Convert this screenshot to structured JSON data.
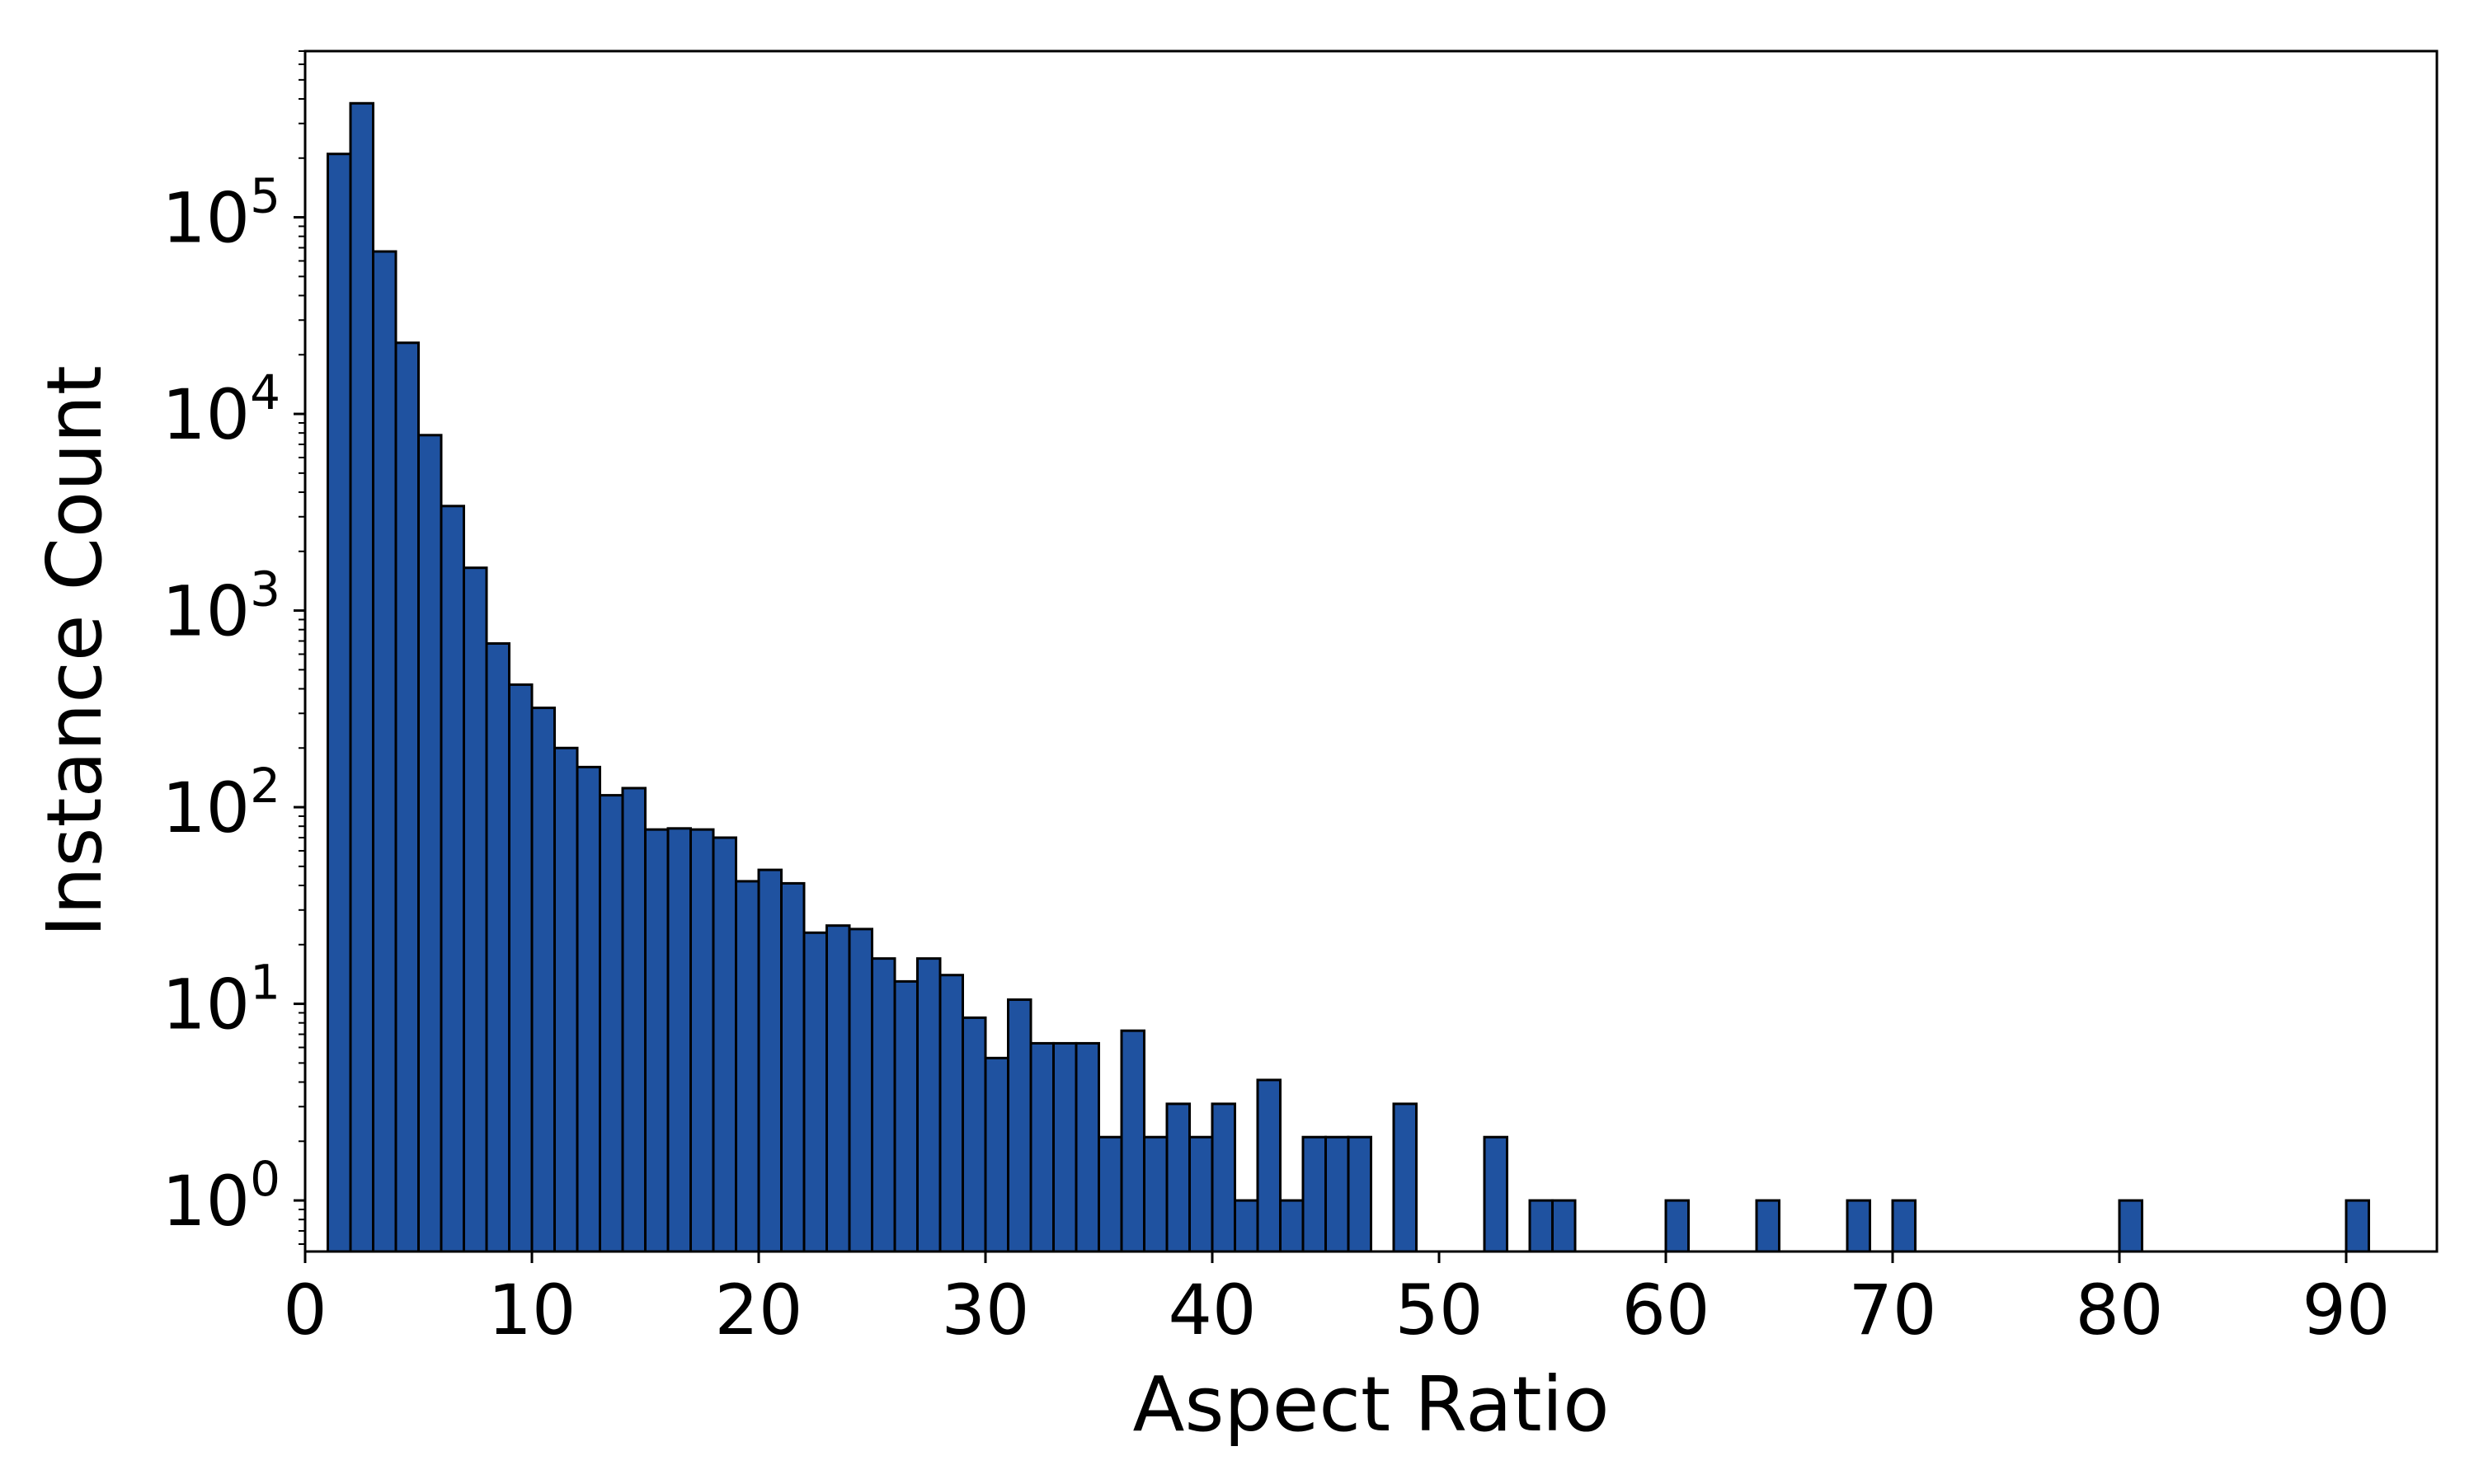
{
  "chart_data": {
    "type": "bar",
    "title": "",
    "xlabel": "Aspect Ratio",
    "ylabel": "Instance Count",
    "xlim": [
      0,
      94
    ],
    "ylim": [
      0.55,
      700000
    ],
    "yscale": "log",
    "grid": false,
    "legend": "none",
    "bar_color": "#1f52a0",
    "edge_color": "#000000",
    "bin_width": 1.0,
    "bins_start": [
      1,
      2,
      3,
      4,
      5,
      6,
      7,
      8,
      9,
      10,
      11,
      12,
      13,
      14,
      15,
      16,
      17,
      18,
      19,
      20,
      21,
      22,
      23,
      24,
      25,
      26,
      27,
      28,
      29,
      30,
      31,
      32,
      33,
      34,
      35,
      36,
      37,
      38,
      39,
      40,
      41,
      42,
      43,
      44,
      45,
      46,
      48,
      52,
      54,
      55,
      60,
      64,
      68,
      70,
      80,
      90
    ],
    "values": [
      210000,
      380000,
      67000,
      23000,
      7800,
      3400,
      1650,
      680,
      420,
      320,
      200,
      160,
      115,
      125,
      77,
      78,
      77,
      70,
      42,
      48,
      41,
      23,
      25,
      24,
      17,
      13,
      17,
      14,
      8.5,
      5.3,
      10.5,
      6.3,
      6.3,
      6.3,
      2.1,
      7.3,
      2.1,
      3.1,
      2.1,
      3.1,
      1,
      4.1,
      1,
      2.1,
      2.1,
      2.1,
      3.1,
      2.1,
      1,
      1,
      1,
      1,
      1,
      1,
      1,
      1
    ],
    "x_ticks": [
      "0",
      "10",
      "20",
      "30",
      "40",
      "50",
      "60",
      "70",
      "80",
      "90"
    ],
    "y_ticks": [
      {
        "value": 1,
        "base": "10",
        "exp": "0"
      },
      {
        "value": 10,
        "base": "10",
        "exp": "1"
      },
      {
        "value": 100,
        "base": "10",
        "exp": "2"
      },
      {
        "value": 1000,
        "base": "10",
        "exp": "3"
      },
      {
        "value": 10000,
        "base": "10",
        "exp": "4"
      },
      {
        "value": 100000,
        "base": "10",
        "exp": "5"
      }
    ]
  }
}
